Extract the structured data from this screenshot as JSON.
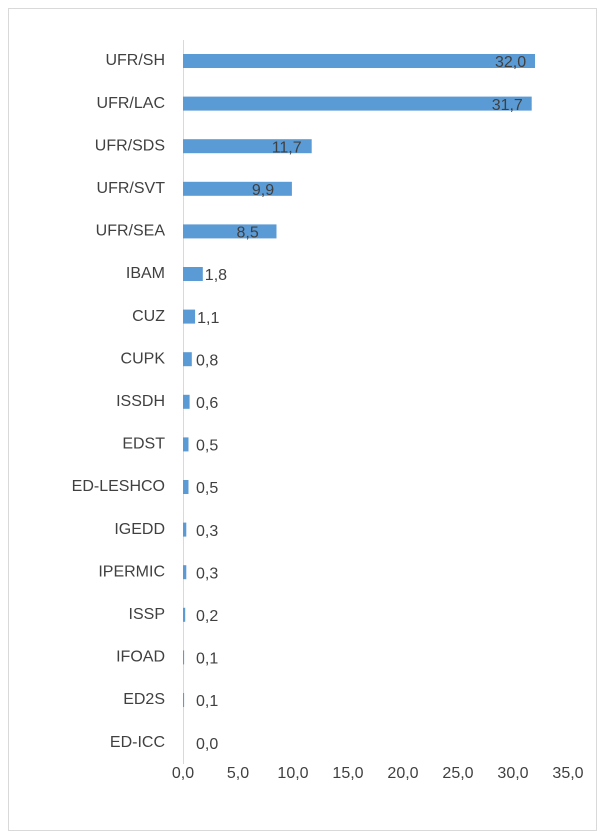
{
  "chart_data": {
    "type": "barh",
    "color": "#5b9bd5",
    "categories": [
      "UFR/SH",
      "UFR/LAC",
      "UFR/SDS",
      "UFR/SVT",
      "UFR/SEA",
      "IBAM",
      "CUZ",
      "CUPK",
      "ISSDH",
      "EDST",
      "ED-LESHCO",
      "IGEDD",
      "IPERMIC",
      "ISSP",
      "IFOAD",
      "ED2S",
      "ED-ICC"
    ],
    "values": [
      32.0,
      31.7,
      11.7,
      9.9,
      8.5,
      1.8,
      1.1,
      0.8,
      0.6,
      0.5,
      0.5,
      0.3,
      0.3,
      0.2,
      0.1,
      0.1,
      0.0
    ],
    "value_labels": [
      "32,0",
      "31,7",
      "11,7",
      "9,9",
      "8,5",
      "1,8",
      "1,1",
      "0,8",
      "0,6",
      "0,5",
      "0,5",
      "0,3",
      "0,3",
      "0,2",
      "0,1",
      "0,1",
      "0,0"
    ],
    "xlim": [
      0,
      35
    ],
    "xticks": [
      {
        "value": 0,
        "label": "0,0"
      },
      {
        "value": 5,
        "label": "5,0"
      },
      {
        "value": 10,
        "label": "10,0"
      },
      {
        "value": 15,
        "label": "15,0"
      },
      {
        "value": 20,
        "label": "20,0"
      },
      {
        "value": 25,
        "label": "25,0"
      },
      {
        "value": 30,
        "label": "30,0"
      },
      {
        "value": 35,
        "label": "35,0"
      }
    ]
  }
}
